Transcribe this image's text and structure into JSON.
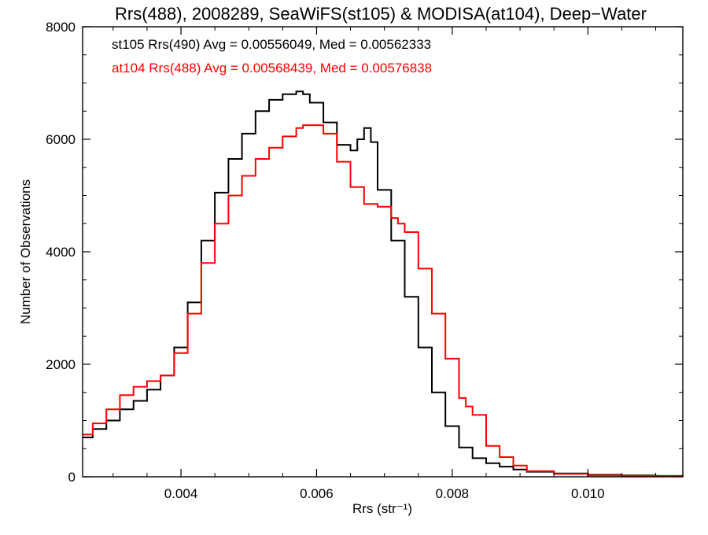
{
  "chart_data": {
    "type": "line",
    "title": "Rrs(488), 2008289, SeaWiFS(st105) & MODISA(at104), Deep−Water",
    "xlabel": "Rrs (str⁻¹)",
    "ylabel": "Number of Observations",
    "xlim": [
      0.00255,
      0.0114
    ],
    "ylim": [
      0,
      8000
    ],
    "x_ticks": [
      0.004,
      0.006,
      0.008,
      0.01
    ],
    "x_tick_labels": [
      "0.004",
      "0.006",
      "0.008",
      "0.010"
    ],
    "y_ticks": [
      0,
      2000,
      4000,
      6000,
      8000
    ],
    "y_tick_labels": [
      "0",
      "2000",
      "4000",
      "6000",
      "8000"
    ],
    "grid": false,
    "legend_position": "top-left",
    "step_style": "histogram",
    "series": [
      {
        "name": "st105 Rrs(490) Avg = 0.00556049, Med = 0.00562333",
        "color": "#000000",
        "x": [
          0.00255,
          0.0027,
          0.0029,
          0.0031,
          0.0033,
          0.0035,
          0.0037,
          0.0039,
          0.0041,
          0.0043,
          0.0045,
          0.0047,
          0.0049,
          0.0051,
          0.0053,
          0.0055,
          0.0057,
          0.0058,
          0.0059,
          0.0061,
          0.0063,
          0.0065,
          0.0066,
          0.0067,
          0.0068,
          0.0069,
          0.0071,
          0.0073,
          0.0075,
          0.0077,
          0.0079,
          0.0081,
          0.0083,
          0.0085,
          0.0087,
          0.0089,
          0.0091,
          0.0095,
          0.01,
          0.0105,
          0.011,
          0.0114
        ],
        "y": [
          700,
          850,
          1000,
          1200,
          1350,
          1550,
          1800,
          2300,
          3100,
          4200,
          5050,
          5650,
          6100,
          6500,
          6700,
          6800,
          6850,
          6800,
          6650,
          6300,
          5900,
          5800,
          6000,
          6200,
          5950,
          5100,
          4200,
          3200,
          2300,
          1500,
          900,
          520,
          330,
          240,
          180,
          130,
          90,
          60,
          35,
          25,
          15,
          10
        ]
      },
      {
        "name": "at104 Rrs(488) Avg = 0.00568439, Med = 0.00576838",
        "color": "#ff0000",
        "x": [
          0.00255,
          0.0027,
          0.0029,
          0.0031,
          0.0033,
          0.0035,
          0.0037,
          0.0039,
          0.0041,
          0.0043,
          0.0045,
          0.0047,
          0.0049,
          0.0051,
          0.0053,
          0.0055,
          0.0057,
          0.0058,
          0.0059,
          0.0061,
          0.0063,
          0.0065,
          0.0067,
          0.0069,
          0.0071,
          0.0072,
          0.0073,
          0.0075,
          0.0077,
          0.0079,
          0.0081,
          0.0082,
          0.0083,
          0.0085,
          0.0087,
          0.0089,
          0.0091,
          0.0095,
          0.01,
          0.0105,
          0.011,
          0.0114
        ],
        "y": [
          750,
          950,
          1200,
          1450,
          1600,
          1700,
          1800,
          2200,
          2900,
          3800,
          4500,
          5000,
          5350,
          5650,
          5850,
          6050,
          6200,
          6250,
          6250,
          6100,
          5600,
          5150,
          4850,
          4800,
          4600,
          4500,
          4350,
          3700,
          2900,
          2100,
          1400,
          1250,
          1100,
          550,
          350,
          200,
          100,
          50,
          25,
          15,
          10,
          5
        ]
      }
    ]
  }
}
